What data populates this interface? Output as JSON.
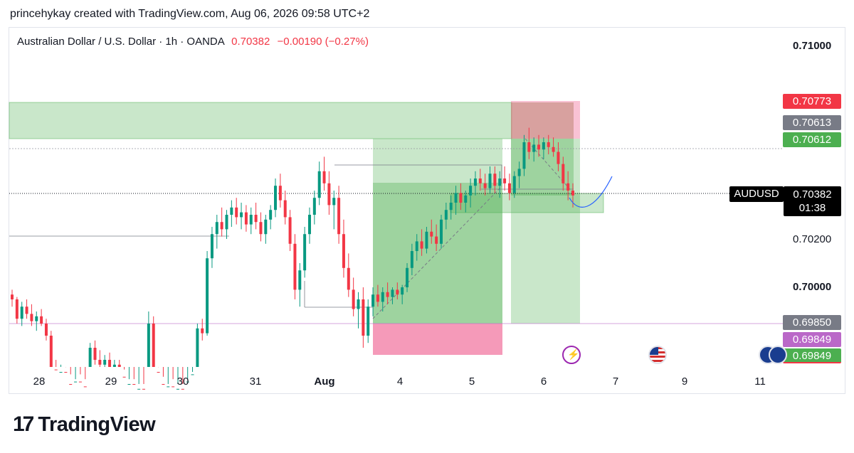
{
  "header": {
    "caption": "princehykay created with TradingView.com, Aug 06, 2026 09:58 UTC+2"
  },
  "legend": {
    "symbol": "Australian Dollar / U.S. Dollar · 1h · OANDA",
    "last": "0.70382",
    "change": "−0.00190 (−0.27%)"
  },
  "price_labels": [
    {
      "text": "0.70773",
      "bg": "#f23645",
      "fg": "#ffffff"
    },
    {
      "text": "0.70613",
      "bg": "#787b86",
      "fg": "#ffffff"
    },
    {
      "text": "0.70612",
      "bg": "#4caf50",
      "fg": "#ffffff"
    },
    {
      "text": "0.69850",
      "bg": "#787b86",
      "fg": "#ffffff"
    },
    {
      "text": "0.69849",
      "bg": "#ba68c8",
      "fg": "#ffffff"
    },
    {
      "text": "0.69849",
      "bg": "#4caf50",
      "fg": "#ffffff"
    }
  ],
  "current": {
    "symbol": "AUDUSD",
    "price": "0.70382",
    "countdown": "01:38"
  },
  "events": [
    "bolt-icon",
    "us-flag-icon",
    "au-flag-icon",
    "au-flag-icon"
  ],
  "brand": {
    "name": "TradingView"
  },
  "colors": {
    "up": "#089981",
    "down": "#f23645",
    "long_zone": "#4caf50",
    "stop_zone": "#f48fb1"
  },
  "chart_data": {
    "type": "candlestick",
    "title": "Australian Dollar / U.S. Dollar · 1h · OANDA",
    "y_ticks": [
      "0.71000",
      "0.70200",
      "0.70000"
    ],
    "x_ticks": [
      "28",
      "29",
      "30",
      "31",
      "Aug",
      "4",
      "5",
      "6",
      "7",
      "9",
      "11"
    ],
    "grid": false,
    "candles": [
      [
        0.6997,
        0.6999,
        0.6992,
        0.6995
      ],
      [
        0.6995,
        0.6996,
        0.6985,
        0.6987
      ],
      [
        0.6987,
        0.6994,
        0.6984,
        0.6992
      ],
      [
        0.6992,
        0.6995,
        0.6987,
        0.6989
      ],
      [
        0.6989,
        0.6993,
        0.6984,
        0.6986
      ],
      [
        0.6986,
        0.699,
        0.6982,
        0.6988
      ],
      [
        0.6988,
        0.6991,
        0.6984,
        0.6985
      ],
      [
        0.6985,
        0.6987,
        0.6978,
        0.698
      ],
      [
        0.698,
        0.6982,
        0.6964,
        0.6966
      ],
      [
        0.6966,
        0.697,
        0.696,
        0.6962
      ],
      [
        0.6962,
        0.6968,
        0.6958,
        0.6965
      ],
      [
        0.6965,
        0.6967,
        0.6958,
        0.696
      ],
      [
        0.696,
        0.6964,
        0.6956,
        0.6958
      ],
      [
        0.6958,
        0.6962,
        0.6955,
        0.6961
      ],
      [
        0.6961,
        0.6964,
        0.6957,
        0.6959
      ],
      [
        0.6959,
        0.6962,
        0.6955,
        0.6957
      ],
      [
        0.6957,
        0.6977,
        0.6955,
        0.6975
      ],
      [
        0.6975,
        0.6978,
        0.6968,
        0.697
      ],
      [
        0.697,
        0.6974,
        0.6965,
        0.6968
      ],
      [
        0.6968,
        0.6972,
        0.6964,
        0.697
      ],
      [
        0.697,
        0.6973,
        0.6965,
        0.6966
      ],
      [
        0.6966,
        0.697,
        0.6963,
        0.6968
      ],
      [
        0.6968,
        0.697,
        0.6961,
        0.6963
      ],
      [
        0.6963,
        0.6966,
        0.6956,
        0.6958
      ],
      [
        0.6958,
        0.6962,
        0.6955,
        0.696
      ],
      [
        0.696,
        0.6962,
        0.6955,
        0.6957
      ],
      [
        0.6957,
        0.696,
        0.6955,
        0.6958
      ],
      [
        0.6958,
        0.696,
        0.6955,
        0.6956
      ],
      [
        0.6956,
        0.699,
        0.6955,
        0.6985
      ],
      [
        0.6985,
        0.6988,
        0.6962,
        0.6965
      ],
      [
        0.6965,
        0.6967,
        0.6958,
        0.696
      ],
      [
        0.696,
        0.6963,
        0.6955,
        0.6957
      ],
      [
        0.6957,
        0.696,
        0.6955,
        0.6959
      ],
      [
        0.6959,
        0.6962,
        0.6955,
        0.6956
      ],
      [
        0.6956,
        0.696,
        0.6954,
        0.6958
      ],
      [
        0.6958,
        0.696,
        0.6954,
        0.6955
      ],
      [
        0.6955,
        0.6962,
        0.6954,
        0.6961
      ],
      [
        0.6961,
        0.6965,
        0.6958,
        0.6964
      ],
      [
        0.6964,
        0.6985,
        0.6962,
        0.6983
      ],
      [
        0.6983,
        0.6987,
        0.6978,
        0.6981
      ],
      [
        0.6981,
        0.7015,
        0.698,
        0.7012
      ],
      [
        0.7012,
        0.7025,
        0.7008,
        0.7022
      ],
      [
        0.7022,
        0.703,
        0.7016,
        0.7027
      ],
      [
        0.7027,
        0.7033,
        0.7021,
        0.7024
      ],
      [
        0.7024,
        0.7032,
        0.702,
        0.703
      ],
      [
        0.703,
        0.7036,
        0.7025,
        0.7033
      ],
      [
        0.7033,
        0.7037,
        0.7026,
        0.7029
      ],
      [
        0.7029,
        0.7035,
        0.7024,
        0.7031
      ],
      [
        0.7031,
        0.7034,
        0.7023,
        0.7026
      ],
      [
        0.7026,
        0.7033,
        0.7022,
        0.703
      ],
      [
        0.703,
        0.7035,
        0.7024,
        0.7027
      ],
      [
        0.7027,
        0.7031,
        0.7019,
        0.7022
      ],
      [
        0.7022,
        0.703,
        0.7018,
        0.7028
      ],
      [
        0.7028,
        0.7034,
        0.7024,
        0.7032
      ],
      [
        0.7032,
        0.7045,
        0.7029,
        0.7042
      ],
      [
        0.7042,
        0.7047,
        0.7033,
        0.7036
      ],
      [
        0.7036,
        0.704,
        0.7026,
        0.7029
      ],
      [
        0.7029,
        0.7032,
        0.7015,
        0.7018
      ],
      [
        0.7018,
        0.7022,
        0.6995,
        0.6999
      ],
      [
        0.6999,
        0.701,
        0.6992,
        0.7007
      ],
      [
        0.7007,
        0.7025,
        0.7004,
        0.7022
      ],
      [
        0.7022,
        0.7033,
        0.7018,
        0.703
      ],
      [
        0.703,
        0.704,
        0.7026,
        0.7037
      ],
      [
        0.7037,
        0.7052,
        0.7034,
        0.7048
      ],
      [
        0.7048,
        0.7054,
        0.704,
        0.7043
      ],
      [
        0.7043,
        0.7048,
        0.703,
        0.7034
      ],
      [
        0.7034,
        0.704,
        0.7024,
        0.7037
      ],
      [
        0.7037,
        0.7042,
        0.7018,
        0.7022
      ],
      [
        0.7022,
        0.7028,
        0.7004,
        0.7008
      ],
      [
        0.7008,
        0.7014,
        0.6996,
        0.6999
      ],
      [
        0.6999,
        0.7004,
        0.6988,
        0.6991
      ],
      [
        0.6991,
        0.6998,
        0.6983,
        0.6995
      ],
      [
        0.6995,
        0.7,
        0.6975,
        0.698
      ],
      [
        0.698,
        0.6995,
        0.6977,
        0.6992
      ],
      [
        0.6992,
        0.7,
        0.6988,
        0.6997
      ],
      [
        0.6997,
        0.7001,
        0.6992,
        0.6994
      ],
      [
        0.6994,
        0.7,
        0.699,
        0.6998
      ],
      [
        0.6998,
        0.7002,
        0.6993,
        0.6996
      ],
      [
        0.6996,
        0.7,
        0.6993,
        0.6999
      ],
      [
        0.6999,
        0.7002,
        0.6995,
        0.6997
      ],
      [
        0.6997,
        0.7001,
        0.6993,
        0.7
      ],
      [
        0.7,
        0.701,
        0.6998,
        0.7008
      ],
      [
        0.7008,
        0.7018,
        0.7005,
        0.7015
      ],
      [
        0.7015,
        0.7022,
        0.7011,
        0.7019
      ],
      [
        0.7019,
        0.7024,
        0.7013,
        0.7016
      ],
      [
        0.7016,
        0.7025,
        0.7014,
        0.7023
      ],
      [
        0.7023,
        0.7028,
        0.7018,
        0.7021
      ],
      [
        0.7021,
        0.7026,
        0.7015,
        0.7018
      ],
      [
        0.7018,
        0.703,
        0.7016,
        0.7028
      ],
      [
        0.7028,
        0.7035,
        0.7024,
        0.7032
      ],
      [
        0.7032,
        0.7038,
        0.7028,
        0.7035
      ],
      [
        0.7035,
        0.7042,
        0.703,
        0.7039
      ],
      [
        0.7039,
        0.7043,
        0.7032,
        0.7035
      ],
      [
        0.7035,
        0.704,
        0.7031,
        0.7038
      ],
      [
        0.7038,
        0.7045,
        0.7033,
        0.7042
      ],
      [
        0.7042,
        0.7048,
        0.7038,
        0.7045
      ],
      [
        0.7045,
        0.7049,
        0.704,
        0.7043
      ],
      [
        0.7043,
        0.7047,
        0.7038,
        0.7041
      ],
      [
        0.7041,
        0.705,
        0.7039,
        0.7047
      ],
      [
        0.7047,
        0.705,
        0.7039,
        0.7042
      ],
      [
        0.7042,
        0.7048,
        0.7037,
        0.7045
      ],
      [
        0.7045,
        0.705,
        0.704,
        0.7043
      ],
      [
        0.7043,
        0.7047,
        0.7036,
        0.7039
      ],
      [
        0.7039,
        0.7048,
        0.7037,
        0.7046
      ],
      [
        0.7046,
        0.7052,
        0.7041,
        0.7049
      ],
      [
        0.7049,
        0.7063,
        0.7046,
        0.706
      ],
      [
        0.706,
        0.7066,
        0.7053,
        0.7056
      ],
      [
        0.7056,
        0.7062,
        0.7052,
        0.7059
      ],
      [
        0.7059,
        0.7063,
        0.7054,
        0.7057
      ],
      [
        0.7057,
        0.7062,
        0.7053,
        0.706
      ],
      [
        0.706,
        0.7063,
        0.7055,
        0.7058
      ],
      [
        0.7058,
        0.7062,
        0.7054,
        0.7056
      ],
      [
        0.7056,
        0.706,
        0.7048,
        0.7051
      ],
      [
        0.7051,
        0.7054,
        0.704,
        0.7043
      ],
      [
        0.7043,
        0.7048,
        0.7036,
        0.704
      ],
      [
        0.704,
        0.7043,
        0.7033,
        0.7038
      ]
    ]
  }
}
